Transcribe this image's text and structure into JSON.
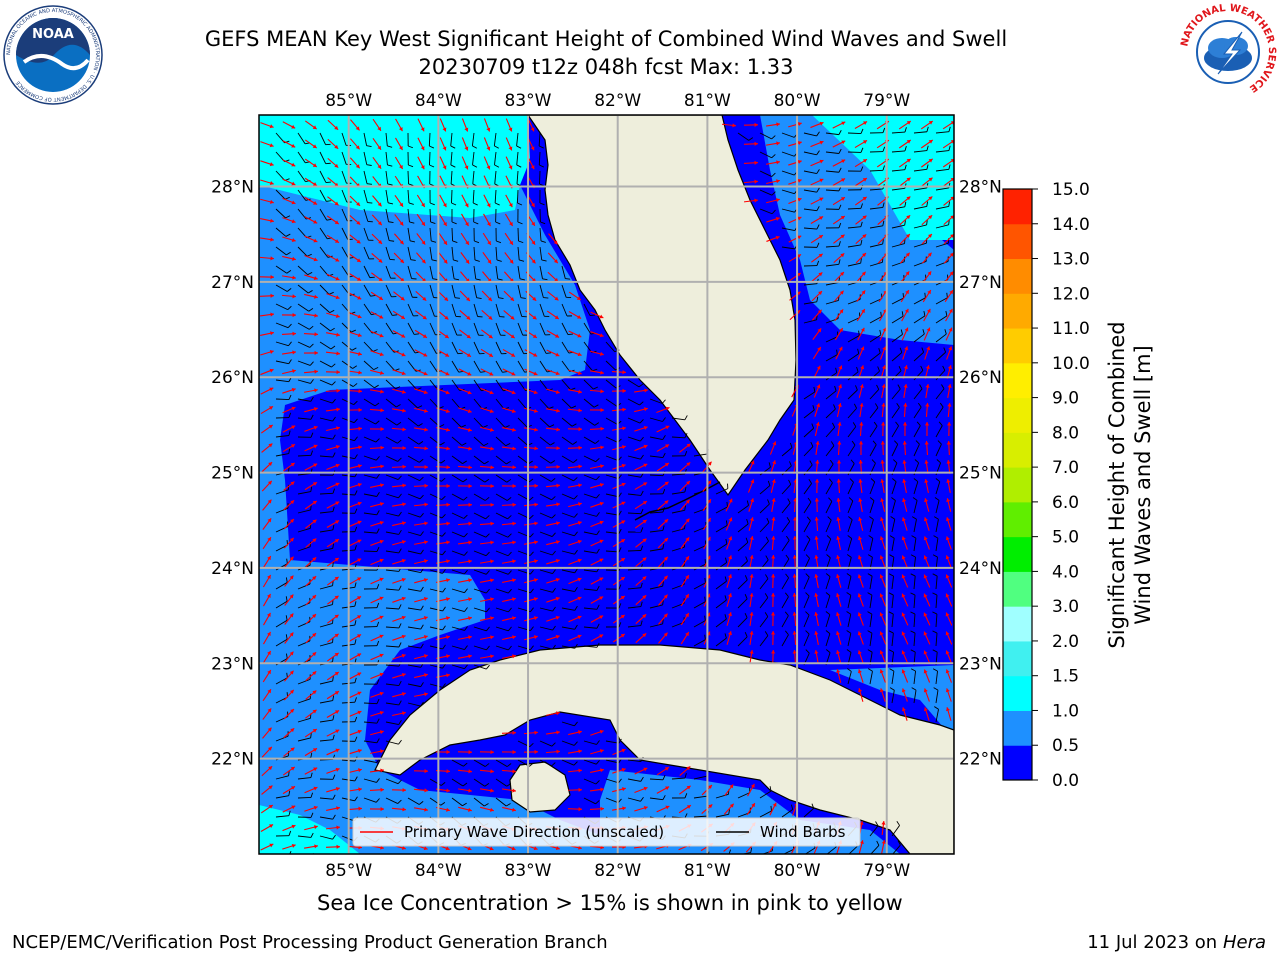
{
  "title": {
    "line1": "GEFS MEAN Key West Significant Height of Combined Wind Waves and Swell",
    "line2": "20230709 t12z 048h fcst    Max: 1.33"
  },
  "map": {
    "lon_labels": [
      "85°W",
      "84°W",
      "83°W",
      "82°W",
      "81°W",
      "80°W",
      "79°W"
    ],
    "lat_labels": [
      "28°N",
      "27°N",
      "26°N",
      "25°N",
      "24°N",
      "23°N",
      "22°N"
    ],
    "extent": {
      "lon_min": -86.0,
      "lon_max": -78.25,
      "lat_min": 21.0,
      "lat_max": 28.75
    },
    "colors": {
      "land": "#eeeedc",
      "grid": "#b0b0b0",
      "wave_arrow": "#ff0000",
      "wind_barb": "#000000"
    }
  },
  "legend": {
    "primary_wave": "Primary Wave Direction (unscaled)",
    "wind_barbs": "Wind Barbs"
  },
  "colorbar": {
    "label_line1": "Significant Height of Combined",
    "label_line2": "Wind Waves and Swell [m]",
    "ticks": [
      "0.0",
      "0.5",
      "1.0",
      "1.5",
      "2.0",
      "3.0",
      "4.0",
      "5.0",
      "6.0",
      "7.0",
      "8.0",
      "9.0",
      "10.0",
      "11.0",
      "12.0",
      "13.0",
      "14.0",
      "15.0"
    ],
    "colors": [
      "#0000ff",
      "#1e90ff",
      "#00ffff",
      "#40f0f0",
      "#a0ffff",
      "#50ff80",
      "#00ee00",
      "#60ee00",
      "#b0ee00",
      "#d8ee00",
      "#eeee00",
      "#ffee00",
      "#ffcc00",
      "#ffaa00",
      "#ff8c00",
      "#ff5500",
      "#ff2200"
    ]
  },
  "footer": {
    "sea_ice": "Sea Ice Concentration > 15% is shown in pink to yellow",
    "credit": "NCEP/EMC/Verification Post Processing Product Generation Branch",
    "date": "11 Jul 2023 on",
    "host": "Hera"
  },
  "logos": {
    "noaa_text": "NOAA",
    "noaa_ring": "NATIONAL OCEANIC AND ATMOSPHERIC ADMINISTRATION · U.S. DEPARTMENT OF COMMERCE",
    "nws_ring": "NATIONAL WEATHER SERVICE"
  }
}
